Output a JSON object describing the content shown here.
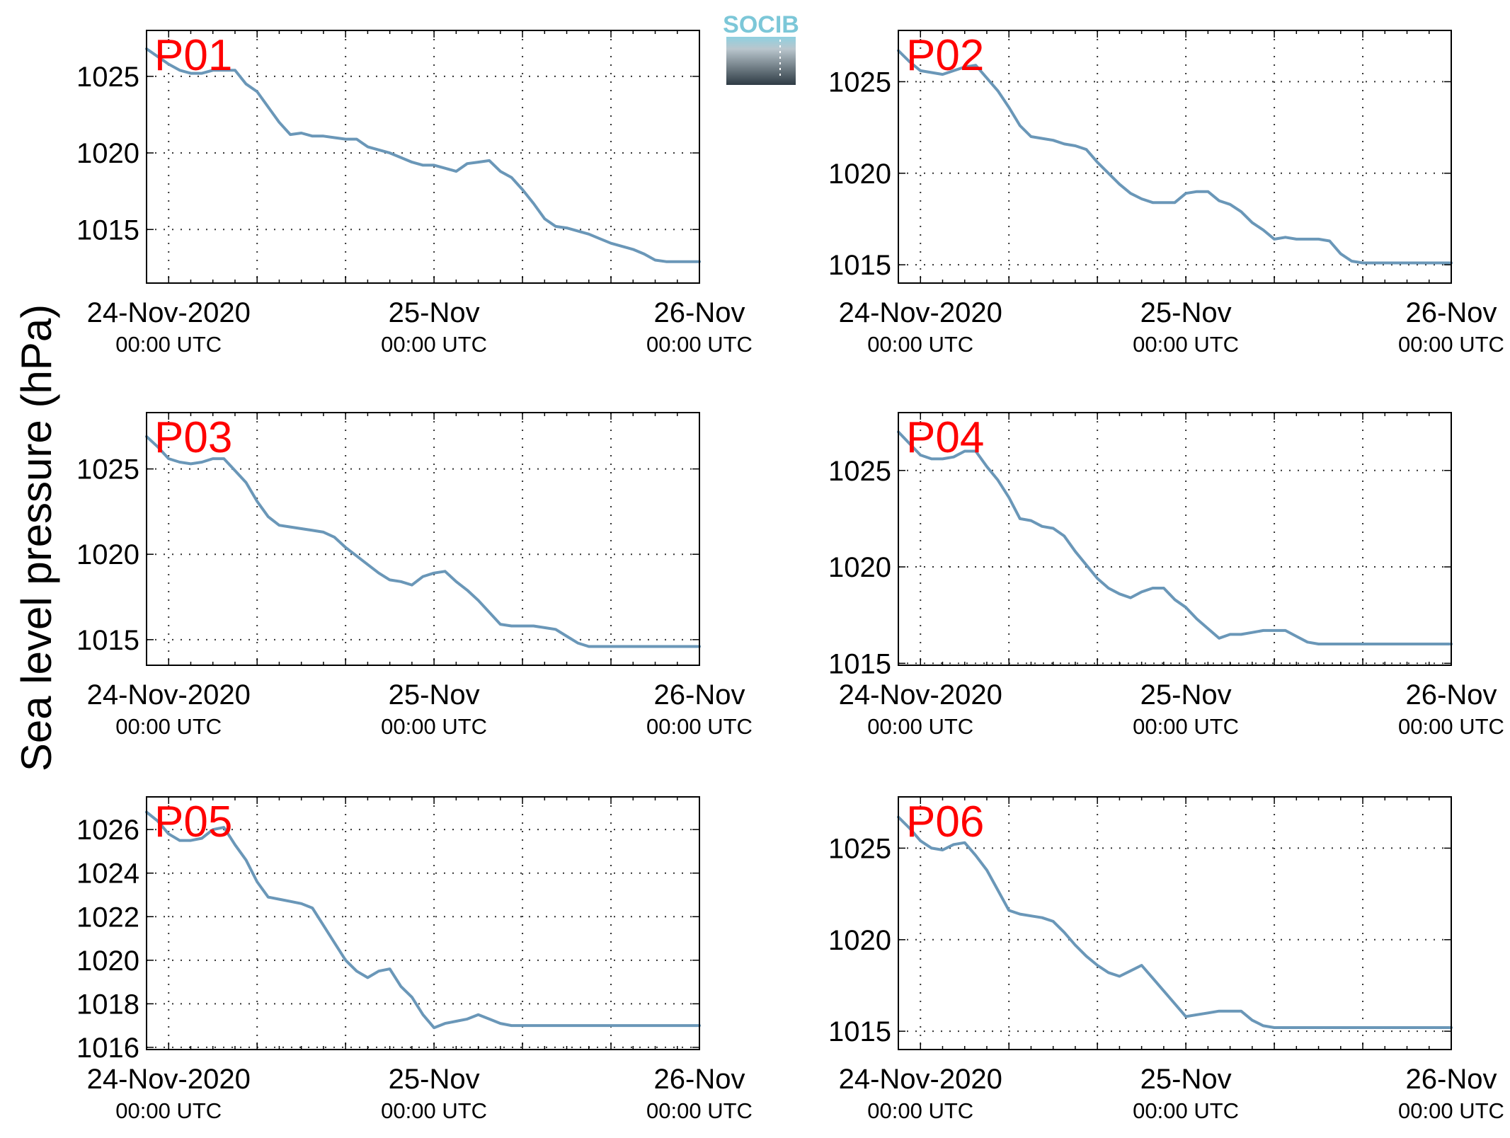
{
  "figure": {
    "ylabel": "Sea level pressure (hPa)",
    "logo_text": "SOCIB",
    "colors": {
      "series": "#6a97b8",
      "panel_label": "#ff0000",
      "axis": "#000000",
      "grid": "#333333"
    }
  },
  "chart_data": [
    {
      "type": "line",
      "title": "P01",
      "grid": true,
      "x_tick_labels": [
        {
          "main": "24-Nov-2020",
          "sub": "00:00 UTC"
        },
        {
          "main": "25-Nov",
          "sub": "00:00 UTC"
        },
        {
          "main": "26-Nov",
          "sub": "00:00 UTC"
        }
      ],
      "xlim": [
        -2,
        48
      ],
      "ylim": [
        1011.5,
        1028
      ],
      "y_ticks": [
        1015,
        1020,
        1025
      ],
      "x": [
        -2,
        -1,
        0,
        1,
        2,
        3,
        4,
        5,
        6,
        7,
        8,
        9,
        10,
        11,
        12,
        13,
        14,
        15,
        16,
        17,
        18,
        19,
        20,
        21,
        22,
        23,
        24,
        25,
        26,
        27,
        28,
        29,
        30,
        31,
        32,
        33,
        34,
        35,
        36,
        37,
        38,
        39,
        40,
        41,
        42,
        43,
        44,
        45,
        46,
        47,
        48
      ],
      "values": [
        1026.8,
        1026.3,
        1025.8,
        1025.4,
        1025.2,
        1025.2,
        1025.4,
        1025.4,
        1025.4,
        1024.5,
        1024.0,
        1023.0,
        1022.0,
        1021.2,
        1021.3,
        1021.1,
        1021.1,
        1021.0,
        1020.9,
        1020.9,
        1020.4,
        1020.2,
        1020.0,
        1019.7,
        1019.4,
        1019.2,
        1019.2,
        1019.0,
        1018.8,
        1019.3,
        1019.4,
        1019.5,
        1018.8,
        1018.4,
        1017.6,
        1016.7,
        1015.7,
        1015.2,
        1015.1,
        1014.9,
        1014.7,
        1014.4,
        1014.1,
        1013.9,
        1013.7,
        1013.4,
        1013.0,
        1012.9,
        1012.9,
        1012.9,
        1012.9
      ]
    },
    {
      "type": "line",
      "title": "P02",
      "grid": true,
      "x_tick_labels": [
        {
          "main": "24-Nov-2020",
          "sub": "00:00 UTC"
        },
        {
          "main": "25-Nov",
          "sub": "00:00 UTC"
        },
        {
          "main": "26-Nov",
          "sub": "00:00 UTC"
        }
      ],
      "xlim": [
        -2,
        48
      ],
      "ylim": [
        1014,
        1027.8
      ],
      "y_ticks": [
        1015,
        1020,
        1025
      ],
      "x": [
        -2,
        -1,
        0,
        1,
        2,
        3,
        4,
        5,
        6,
        7,
        8,
        9,
        10,
        11,
        12,
        13,
        14,
        15,
        16,
        17,
        18,
        19,
        20,
        21,
        22,
        23,
        24,
        25,
        26,
        27,
        28,
        29,
        30,
        31,
        32,
        33,
        34,
        35,
        36,
        37,
        38,
        39,
        40,
        41,
        42,
        43,
        44,
        45,
        46,
        47,
        48
      ],
      "values": [
        1026.7,
        1026.1,
        1025.6,
        1025.5,
        1025.4,
        1025.6,
        1025.8,
        1025.9,
        1025.2,
        1024.5,
        1023.6,
        1022.6,
        1022.0,
        1021.9,
        1021.8,
        1021.6,
        1021.5,
        1021.3,
        1020.6,
        1020.0,
        1019.4,
        1018.9,
        1018.6,
        1018.4,
        1018.4,
        1018.4,
        1018.9,
        1019.0,
        1019.0,
        1018.5,
        1018.3,
        1017.9,
        1017.3,
        1016.9,
        1016.4,
        1016.5,
        1016.4,
        1016.4,
        1016.4,
        1016.3,
        1015.6,
        1015.2,
        1015.1,
        1015.1,
        1015.1,
        1015.1,
        1015.1,
        1015.1,
        1015.1,
        1015.1,
        1015.1
      ]
    },
    {
      "type": "line",
      "title": "P03",
      "grid": true,
      "x_tick_labels": [
        {
          "main": "24-Nov-2020",
          "sub": "00:00 UTC"
        },
        {
          "main": "25-Nov",
          "sub": "00:00 UTC"
        },
        {
          "main": "26-Nov",
          "sub": "00:00 UTC"
        }
      ],
      "xlim": [
        -2,
        48
      ],
      "ylim": [
        1013.5,
        1028.3
      ],
      "y_ticks": [
        1015,
        1020,
        1025
      ],
      "x": [
        -2,
        -1,
        0,
        1,
        2,
        3,
        4,
        5,
        6,
        7,
        8,
        9,
        10,
        11,
        12,
        13,
        14,
        15,
        16,
        17,
        18,
        19,
        20,
        21,
        22,
        23,
        24,
        25,
        26,
        27,
        28,
        29,
        30,
        31,
        32,
        33,
        34,
        35,
        36,
        37,
        38,
        39,
        40,
        41,
        42,
        43,
        44,
        45,
        46,
        47,
        48
      ],
      "values": [
        1026.9,
        1026.3,
        1025.6,
        1025.4,
        1025.3,
        1025.4,
        1025.6,
        1025.6,
        1024.9,
        1024.2,
        1023.1,
        1022.2,
        1021.7,
        1021.6,
        1021.5,
        1021.4,
        1021.3,
        1021.0,
        1020.4,
        1019.9,
        1019.4,
        1018.9,
        1018.5,
        1018.4,
        1018.2,
        1018.7,
        1018.9,
        1019.0,
        1018.4,
        1017.9,
        1017.3,
        1016.6,
        1015.9,
        1015.8,
        1015.8,
        1015.8,
        1015.7,
        1015.6,
        1015.2,
        1014.8,
        1014.6,
        1014.6,
        1014.6,
        1014.6,
        1014.6,
        1014.6,
        1014.6,
        1014.6,
        1014.6,
        1014.6,
        1014.6
      ]
    },
    {
      "type": "line",
      "title": "P04",
      "grid": true,
      "x_tick_labels": [
        {
          "main": "24-Nov-2020",
          "sub": "00:00 UTC"
        },
        {
          "main": "25-Nov",
          "sub": "00:00 UTC"
        },
        {
          "main": "26-Nov",
          "sub": "00:00 UTC"
        }
      ],
      "xlim": [
        -2,
        48
      ],
      "ylim": [
        1014.9,
        1028
      ],
      "y_ticks": [
        1015,
        1020,
        1025
      ],
      "x": [
        -2,
        -1,
        0,
        1,
        2,
        3,
        4,
        5,
        6,
        7,
        8,
        9,
        10,
        11,
        12,
        13,
        14,
        15,
        16,
        17,
        18,
        19,
        20,
        21,
        22,
        23,
        24,
        25,
        26,
        27,
        28,
        29,
        30,
        31,
        32,
        33,
        34,
        35,
        36,
        37,
        38,
        39,
        40,
        41,
        42,
        43,
        44,
        45,
        46,
        47,
        48
      ],
      "values": [
        1027.0,
        1026.4,
        1025.8,
        1025.6,
        1025.6,
        1025.7,
        1026.0,
        1026.0,
        1025.2,
        1024.5,
        1023.6,
        1022.5,
        1022.4,
        1022.1,
        1022.0,
        1021.6,
        1020.8,
        1020.1,
        1019.4,
        1018.9,
        1018.6,
        1018.4,
        1018.7,
        1018.9,
        1018.9,
        1018.3,
        1017.9,
        1017.3,
        1016.8,
        1016.3,
        1016.5,
        1016.5,
        1016.6,
        1016.7,
        1016.7,
        1016.7,
        1016.4,
        1016.1,
        1016.0,
        1016.0,
        1016.0,
        1016.0,
        1016.0,
        1016.0,
        1016.0,
        1016.0,
        1016.0,
        1016.0,
        1016.0,
        1016.0,
        1016.0
      ]
    },
    {
      "type": "line",
      "title": "P05",
      "grid": true,
      "x_tick_labels": [
        {
          "main": "24-Nov-2020",
          "sub": "00:00 UTC"
        },
        {
          "main": "25-Nov",
          "sub": "00:00 UTC"
        },
        {
          "main": "26-Nov",
          "sub": "00:00 UTC"
        }
      ],
      "xlim": [
        -2,
        48
      ],
      "ylim": [
        1015.9,
        1027.5
      ],
      "y_ticks": [
        1016,
        1018,
        1020,
        1022,
        1024,
        1026
      ],
      "x": [
        -2,
        -1,
        0,
        1,
        2,
        3,
        4,
        5,
        6,
        7,
        8,
        9,
        10,
        11,
        12,
        13,
        14,
        15,
        16,
        17,
        18,
        19,
        20,
        21,
        22,
        23,
        24,
        25,
        26,
        27,
        28,
        29,
        30,
        31,
        32,
        33,
        34,
        35,
        36,
        37,
        38,
        39,
        40,
        41,
        42,
        43,
        44,
        45,
        46,
        47,
        48
      ],
      "values": [
        1026.8,
        1026.4,
        1025.8,
        1025.5,
        1025.5,
        1025.6,
        1026.0,
        1026.1,
        1025.3,
        1024.6,
        1023.6,
        1022.9,
        1022.8,
        1022.7,
        1022.6,
        1022.4,
        1021.6,
        1020.8,
        1020.0,
        1019.5,
        1019.2,
        1019.5,
        1019.6,
        1018.8,
        1018.3,
        1017.5,
        1016.9,
        1017.1,
        1017.2,
        1017.3,
        1017.5,
        1017.3,
        1017.1,
        1017.0,
        1017.0,
        1017.0,
        1017.0,
        1017.0,
        1017.0,
        1017.0,
        1017.0,
        1017.0,
        1017.0,
        1017.0,
        1017.0,
        1017.0,
        1017.0,
        1017.0,
        1017.0,
        1017.0,
        1017.0
      ]
    },
    {
      "type": "line",
      "title": "P06",
      "grid": true,
      "x_tick_labels": [
        {
          "main": "24-Nov-2020",
          "sub": "00:00 UTC"
        },
        {
          "main": "25-Nov",
          "sub": "00:00 UTC"
        },
        {
          "main": "26-Nov",
          "sub": "00:00 UTC"
        }
      ],
      "xlim": [
        -2,
        48
      ],
      "ylim": [
        1014,
        1027.8
      ],
      "y_ticks": [
        1015,
        1020,
        1025
      ],
      "x": [
        -2,
        -1,
        0,
        1,
        2,
        3,
        4,
        5,
        6,
        7,
        8,
        9,
        10,
        11,
        12,
        13,
        14,
        15,
        16,
        17,
        18,
        19,
        20,
        21,
        22,
        23,
        24,
        25,
        26,
        27,
        28,
        29,
        30,
        31,
        32,
        33,
        34,
        35,
        36,
        37,
        38,
        39,
        40,
        41,
        42,
        43,
        44,
        45,
        46,
        47,
        48
      ],
      "values": [
        1026.7,
        1026.1,
        1025.4,
        1025.0,
        1024.9,
        1025.2,
        1025.3,
        1024.6,
        1023.8,
        1022.7,
        1021.6,
        1021.4,
        1021.3,
        1021.2,
        1021.0,
        1020.4,
        1019.7,
        1019.1,
        1018.6,
        1018.2,
        1018.0,
        1018.3,
        1018.6,
        1017.9,
        1017.2,
        1016.5,
        1015.8,
        1015.9,
        1016.0,
        1016.1,
        1016.1,
        1016.1,
        1015.6,
        1015.3,
        1015.2,
        1015.2,
        1015.2,
        1015.2,
        1015.2,
        1015.2,
        1015.2,
        1015.2,
        1015.2,
        1015.2,
        1015.2,
        1015.2,
        1015.2,
        1015.2,
        1015.2,
        1015.2,
        1015.2
      ]
    }
  ]
}
